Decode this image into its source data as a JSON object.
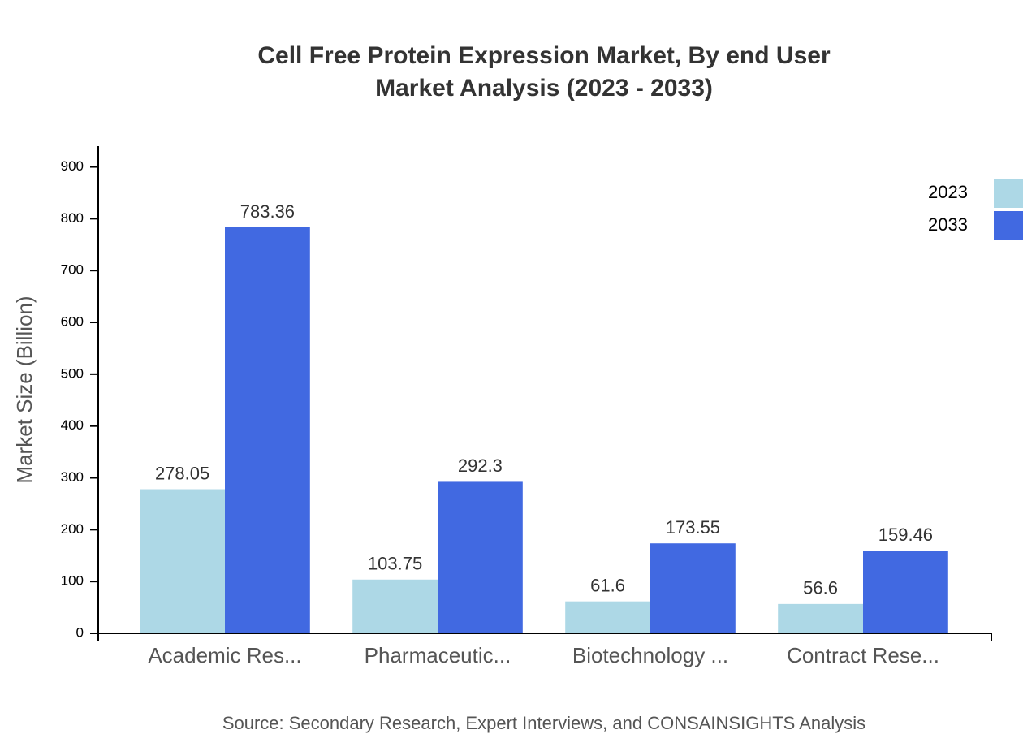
{
  "chart_data": {
    "type": "bar",
    "title": "Cell Free Protein Expression Market, By end User",
    "subtitle": "Market Analysis (2023 - 2033)",
    "y_label": "Market Size (Billion)",
    "source": "Source: Secondary Research, Expert Interviews, and CONSAINSIGHTS Analysis",
    "categories": [
      "Academic Res...",
      "Pharmaceutic...",
      "Biotechnology ...",
      "Contract Rese..."
    ],
    "series": [
      {
        "name": "2023",
        "color": "#add8e6",
        "values": [
          278.05,
          103.75,
          61.6,
          56.6
        ]
      },
      {
        "name": "2033",
        "color": "#4169e1",
        "values": [
          783.36,
          292.3,
          173.55,
          159.46
        ]
      }
    ],
    "ylim": [
      0,
      940
    ],
    "yticks": [
      0,
      100,
      200,
      300,
      400,
      500,
      600,
      700,
      800,
      900
    ],
    "grid": false,
    "legend": "top-right"
  }
}
